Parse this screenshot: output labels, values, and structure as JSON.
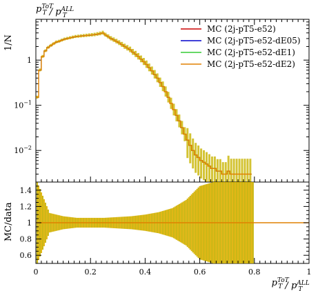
{
  "chart_data": [
    {
      "panel": "main",
      "type": "line",
      "title": "p_T^{ToT} / p_T^{ALL}",
      "ylabel": "1/N",
      "yscale": "log",
      "xlim": [
        0,
        1
      ],
      "ylim": [
        0.002,
        8
      ],
      "y_ticks": [
        {
          "value": 0.01,
          "base": "10",
          "exp": "−2"
        },
        {
          "value": 0.1,
          "base": "10",
          "exp": "−1"
        },
        {
          "value": 1,
          "base": "1",
          "exp": ""
        }
      ],
      "legend_position": "top-right",
      "x": [
        0.005,
        0.015,
        0.025,
        0.035,
        0.045,
        0.055,
        0.065,
        0.075,
        0.085,
        0.095,
        0.105,
        0.115,
        0.125,
        0.135,
        0.145,
        0.155,
        0.165,
        0.175,
        0.185,
        0.195,
        0.205,
        0.215,
        0.225,
        0.235,
        0.245,
        0.255,
        0.265,
        0.275,
        0.285,
        0.295,
        0.305,
        0.315,
        0.325,
        0.335,
        0.345,
        0.355,
        0.365,
        0.375,
        0.385,
        0.395,
        0.405,
        0.415,
        0.425,
        0.435,
        0.445,
        0.455,
        0.465,
        0.475,
        0.485,
        0.495,
        0.505,
        0.515,
        0.525,
        0.535,
        0.545,
        0.555,
        0.565,
        0.575,
        0.585,
        0.595,
        0.605,
        0.615,
        0.625,
        0.635,
        0.645,
        0.655,
        0.665,
        0.675,
        0.685,
        0.695,
        0.705,
        0.715,
        0.725,
        0.735,
        0.745,
        0.755,
        0.765,
        0.775,
        0.785
      ],
      "series": [
        {
          "name": "MC (2j-pT5-e52)",
          "color": "#cc0000",
          "values": [
            0.15,
            0.6,
            1.2,
            1.6,
            1.9,
            2.1,
            2.3,
            2.5,
            2.6,
            2.75,
            2.9,
            3.0,
            3.1,
            3.2,
            3.3,
            3.35,
            3.4,
            3.45,
            3.5,
            3.55,
            3.6,
            3.65,
            3.75,
            3.85,
            4.0,
            3.6,
            3.3,
            3.0,
            2.8,
            2.6,
            2.4,
            2.2,
            2.0,
            1.85,
            1.7,
            1.5,
            1.35,
            1.2,
            1.05,
            0.92,
            0.8,
            0.68,
            0.58,
            0.48,
            0.4,
            0.32,
            0.26,
            0.2,
            0.15,
            0.11,
            0.08,
            0.06,
            0.045,
            0.032,
            0.023,
            0.017,
            0.013,
            0.01,
            0.008,
            0.007,
            0.006,
            0.0055,
            0.005,
            0.0045,
            0.004,
            0.004,
            0.0035,
            0.0035,
            0.003,
            0.003,
            0.0035,
            0.003,
            0.003,
            0.003,
            0.003,
            0.003,
            0.003,
            0.003,
            0.003
          ]
        },
        {
          "name": "MC (2j-pT5-e52-dE05)",
          "color": "#0000cc",
          "values": [
            0.15,
            0.6,
            1.2,
            1.6,
            1.9,
            2.1,
            2.3,
            2.5,
            2.6,
            2.75,
            2.9,
            3.0,
            3.1,
            3.2,
            3.3,
            3.35,
            3.4,
            3.45,
            3.5,
            3.55,
            3.6,
            3.65,
            3.75,
            3.85,
            4.0,
            3.6,
            3.3,
            3.0,
            2.8,
            2.6,
            2.4,
            2.2,
            2.0,
            1.85,
            1.7,
            1.5,
            1.35,
            1.2,
            1.05,
            0.92,
            0.8,
            0.68,
            0.58,
            0.48,
            0.4,
            0.32,
            0.26,
            0.2,
            0.15,
            0.11,
            0.08,
            0.06,
            0.045,
            0.032,
            0.023,
            0.017,
            0.013,
            0.01,
            0.008,
            0.007,
            0.006,
            0.0055,
            0.005,
            0.0045,
            0.004,
            0.004,
            0.0035,
            0.0035,
            0.003,
            0.003,
            0.0035,
            0.003,
            0.003,
            0.003,
            0.003,
            0.003,
            0.003,
            0.003,
            0.003
          ]
        },
        {
          "name": "MC (2j-pT5-e52-dE1)",
          "color": "#33cc33",
          "values": [
            0.15,
            0.6,
            1.2,
            1.6,
            1.9,
            2.1,
            2.3,
            2.5,
            2.6,
            2.75,
            2.9,
            3.0,
            3.1,
            3.2,
            3.3,
            3.35,
            3.4,
            3.45,
            3.5,
            3.55,
            3.6,
            3.65,
            3.75,
            3.85,
            4.0,
            3.6,
            3.3,
            3.0,
            2.8,
            2.6,
            2.4,
            2.2,
            2.0,
            1.85,
            1.7,
            1.5,
            1.35,
            1.2,
            1.05,
            0.92,
            0.8,
            0.68,
            0.58,
            0.48,
            0.4,
            0.32,
            0.26,
            0.2,
            0.15,
            0.11,
            0.08,
            0.06,
            0.045,
            0.032,
            0.023,
            0.017,
            0.013,
            0.01,
            0.008,
            0.007,
            0.006,
            0.0055,
            0.005,
            0.0045,
            0.004,
            0.004,
            0.0035,
            0.0035,
            0.003,
            0.003,
            0.0035,
            0.003,
            0.003,
            0.003,
            0.003,
            0.003,
            0.003,
            0.003,
            0.003
          ]
        },
        {
          "name": "MC (2j-pT5-e52-dE2)",
          "color": "#e08000",
          "values": [
            0.15,
            0.6,
            1.2,
            1.6,
            1.9,
            2.1,
            2.3,
            2.5,
            2.6,
            2.75,
            2.9,
            3.0,
            3.1,
            3.2,
            3.3,
            3.35,
            3.4,
            3.45,
            3.5,
            3.55,
            3.6,
            3.65,
            3.75,
            3.85,
            4.0,
            3.6,
            3.3,
            3.0,
            2.8,
            2.6,
            2.4,
            2.2,
            2.0,
            1.85,
            1.7,
            1.5,
            1.35,
            1.2,
            1.05,
            0.92,
            0.8,
            0.68,
            0.58,
            0.48,
            0.4,
            0.32,
            0.26,
            0.2,
            0.15,
            0.11,
            0.08,
            0.06,
            0.045,
            0.032,
            0.023,
            0.017,
            0.013,
            0.01,
            0.008,
            0.007,
            0.006,
            0.0055,
            0.005,
            0.0045,
            0.004,
            0.004,
            0.0035,
            0.0035,
            0.003,
            0.003,
            0.0035,
            0.003,
            0.003,
            0.003,
            0.003,
            0.003,
            0.003,
            0.003,
            0.003
          ]
        }
      ]
    },
    {
      "panel": "ratio",
      "type": "line",
      "ylabel": "MC/data",
      "xlabel": "p_T^{ToT} / p_T^{ALL}",
      "xlim": [
        0,
        1
      ],
      "ylim": [
        0.5,
        1.5
      ],
      "y_ticks": [
        "0.6",
        "0.8",
        "1",
        "1.2",
        "1.4"
      ],
      "x_ticks": [
        "0",
        "0.2",
        "0.4",
        "0.6",
        "0.8",
        "1"
      ],
      "reference_value": 1,
      "band_color": "#d4b400",
      "band": {
        "x": [
          0.005,
          0.05,
          0.1,
          0.15,
          0.2,
          0.25,
          0.3,
          0.35,
          0.4,
          0.45,
          0.5,
          0.55,
          0.6,
          0.65,
          0.7,
          0.75,
          0.8
        ],
        "half_width": [
          0.5,
          0.12,
          0.08,
          0.06,
          0.06,
          0.06,
          0.07,
          0.08,
          0.1,
          0.13,
          0.18,
          0.28,
          0.45,
          0.5,
          0.5,
          0.5,
          0.5
        ]
      }
    }
  ],
  "colors": {
    "error_bar": "#c8b400",
    "ratio_band": "#d4b400",
    "ratio_line": "#e08000"
  }
}
